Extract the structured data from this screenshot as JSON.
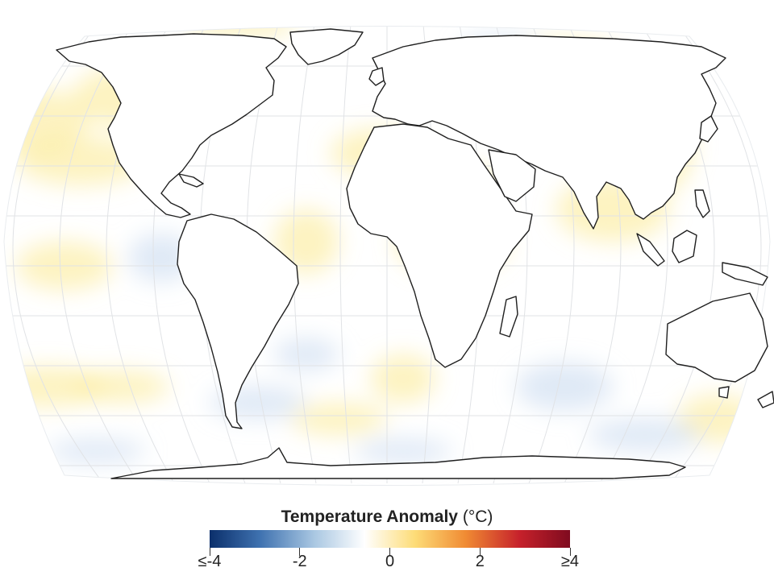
{
  "colors": {
    "ocean": "#ffffff",
    "land_stroke": "#1f1f1f",
    "grid": "#e1e3e6",
    "warm": "#fbe98e",
    "cool": "#c9daf0",
    "scale": [
      "#0b2f6b",
      "#3f72b0",
      "#a9c7e2",
      "#ffffff",
      "#fddc77",
      "#f08b33",
      "#c6212b",
      "#7f0b1f"
    ]
  },
  "legend": {
    "title": "Temperature Anomaly",
    "unit": "(°C)",
    "ticks": [
      {
        "label": "≤-4",
        "value": -4
      },
      {
        "label": "-2",
        "value": -2
      },
      {
        "label": "0",
        "value": 0
      },
      {
        "label": "2",
        "value": 2
      },
      {
        "label": "≥4",
        "value": 4
      }
    ]
  },
  "map": {
    "projection": "robinson-like",
    "graticule": true,
    "regions": [
      {
        "name": "north-america",
        "icon": "continent-outline"
      },
      {
        "name": "greenland",
        "icon": "continent-outline"
      },
      {
        "name": "south-america",
        "icon": "continent-outline"
      },
      {
        "name": "europe-asia",
        "icon": "continent-outline"
      },
      {
        "name": "africa",
        "icon": "continent-outline"
      },
      {
        "name": "australia",
        "icon": "continent-outline"
      },
      {
        "name": "antarctica",
        "icon": "continent-outline"
      }
    ]
  }
}
